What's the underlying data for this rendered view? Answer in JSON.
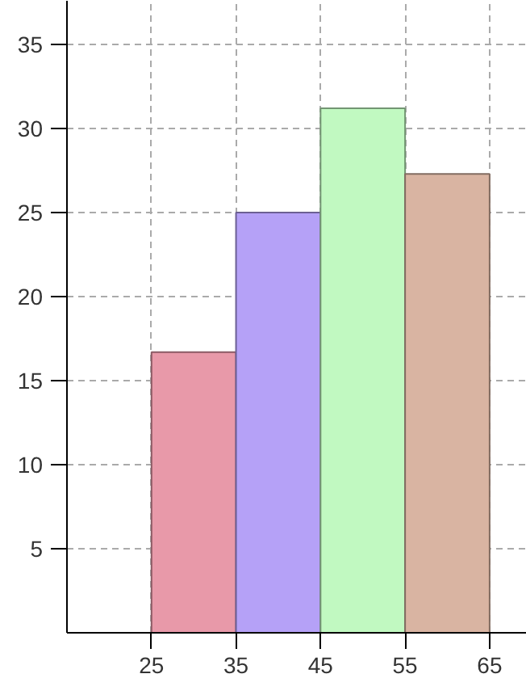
{
  "chart_data": {
    "type": "histogram",
    "bins": [
      25,
      35,
      45,
      55,
      65
    ],
    "values": [
      16.7,
      25,
      31.2,
      27.3
    ],
    "colors": [
      "#e899a9",
      "#b5a1f7",
      "#c1f9c1",
      "#d9b4a2"
    ],
    "xlim": [
      15,
      69.4
    ],
    "ylim": [
      0,
      37.6
    ],
    "xticks": [
      25,
      35,
      45,
      55,
      65
    ],
    "yticks": [
      5,
      10,
      15,
      20,
      25,
      30,
      35
    ],
    "grid": true
  }
}
